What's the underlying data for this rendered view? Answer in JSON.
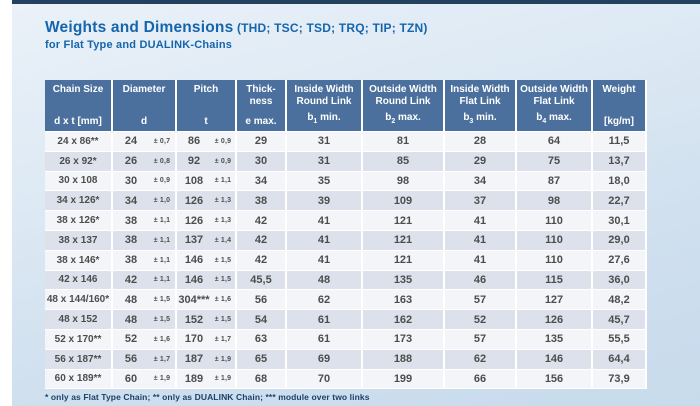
{
  "page": {
    "title": "Weights and Dimensions",
    "title_suffix": " (THD; TSC; TSD; TRQ; TIP; TZN)",
    "subtitle": "for Flat Type and DUALINK-Chains",
    "footnote": "* only as Flat Type Chain; ** only as DUALINK Chain; *** module over two links",
    "colors": {
      "accent_navy": "#24405f",
      "title_blue": "#1565ad",
      "header_bg": "#4b709d",
      "row_light": "#f3f5f9",
      "row_dark": "#dce1eb"
    }
  },
  "table": {
    "columns": [
      {
        "lines": [
          "Chain Size"
        ],
        "sym_pre": "d x t [mm]",
        "sym_sub": "",
        "sym_post": ""
      },
      {
        "lines": [
          "Diameter"
        ],
        "sym_pre": "d",
        "sym_sub": "",
        "sym_post": ""
      },
      {
        "lines": [
          "Pitch"
        ],
        "sym_pre": "t",
        "sym_sub": "",
        "sym_post": ""
      },
      {
        "lines": [
          "Thick-",
          "ness"
        ],
        "sym_pre": "e max.",
        "sym_sub": "",
        "sym_post": ""
      },
      {
        "lines": [
          "Inside Width",
          "Round Link"
        ],
        "sym_pre": "b",
        "sym_sub": "1",
        "sym_post": " min."
      },
      {
        "lines": [
          "Outside Width",
          "Round Link"
        ],
        "sym_pre": "b",
        "sym_sub": "2",
        "sym_post": " max."
      },
      {
        "lines": [
          "Inside Width",
          "Flat Link"
        ],
        "sym_pre": "b",
        "sym_sub": "3",
        "sym_post": " min."
      },
      {
        "lines": [
          "Outside Width",
          "Flat Link"
        ],
        "sym_pre": "b",
        "sym_sub": "4",
        "sym_post": " max."
      },
      {
        "lines": [
          "Weight"
        ],
        "sym_pre": "[kg/m]",
        "sym_sub": "",
        "sym_post": ""
      }
    ],
    "rows": [
      {
        "cells": [
          "24 x 86**",
          "24",
          "± 0,7",
          "86",
          "± 0,9",
          "29",
          "31",
          "81",
          "28",
          "64",
          "11,5"
        ]
      },
      {
        "cells": [
          "26 x 92*",
          "26",
          "± 0,8",
          "92",
          "± 0,9",
          "30",
          "31",
          "85",
          "29",
          "75",
          "13,7"
        ]
      },
      {
        "cells": [
          "30 x 108",
          "30",
          "± 0,9",
          "108",
          "± 1,1",
          "34",
          "35",
          "98",
          "34",
          "87",
          "18,0"
        ]
      },
      {
        "cells": [
          "34 x 126*",
          "34",
          "± 1,0",
          "126",
          "± 1,3",
          "38",
          "39",
          "109",
          "37",
          "98",
          "22,7"
        ]
      },
      {
        "cells": [
          "38 x 126*",
          "38",
          "± 1,1",
          "126",
          "± 1,3",
          "42",
          "41",
          "121",
          "41",
          "110",
          "30,1"
        ]
      },
      {
        "cells": [
          "38 x 137",
          "38",
          "± 1,1",
          "137",
          "± 1,4",
          "42",
          "41",
          "121",
          "41",
          "110",
          "29,0"
        ]
      },
      {
        "cells": [
          "38 x 146*",
          "38",
          "± 1,1",
          "146",
          "± 1,5",
          "42",
          "41",
          "121",
          "41",
          "110",
          "27,6"
        ]
      },
      {
        "cells": [
          "42 x 146",
          "42",
          "± 1,1",
          "146",
          "± 1,5",
          "45,5",
          "48",
          "135",
          "46",
          "115",
          "36,0"
        ]
      },
      {
        "cells": [
          "48 x 144/160*",
          "48",
          "± 1,5",
          "304***",
          "± 1,6",
          "56",
          "62",
          "163",
          "57",
          "127",
          "48,2"
        ]
      },
      {
        "cells": [
          "48 x 152",
          "48",
          "± 1,5",
          "152",
          "± 1,5",
          "54",
          "61",
          "162",
          "52",
          "126",
          "45,7"
        ]
      },
      {
        "cells": [
          "52 x 170**",
          "52",
          "± 1,6",
          "170",
          "± 1,7",
          "63",
          "61",
          "173",
          "57",
          "135",
          "55,5"
        ]
      },
      {
        "cells": [
          "56 x 187**",
          "56",
          "± 1,7",
          "187",
          "± 1,9",
          "65",
          "69",
          "188",
          "62",
          "146",
          "64,4"
        ]
      },
      {
        "cells": [
          "60 x 189**",
          "60",
          "± 1,9",
          "189",
          "± 1,9",
          "68",
          "70",
          "199",
          "66",
          "156",
          "73,9"
        ]
      }
    ]
  }
}
